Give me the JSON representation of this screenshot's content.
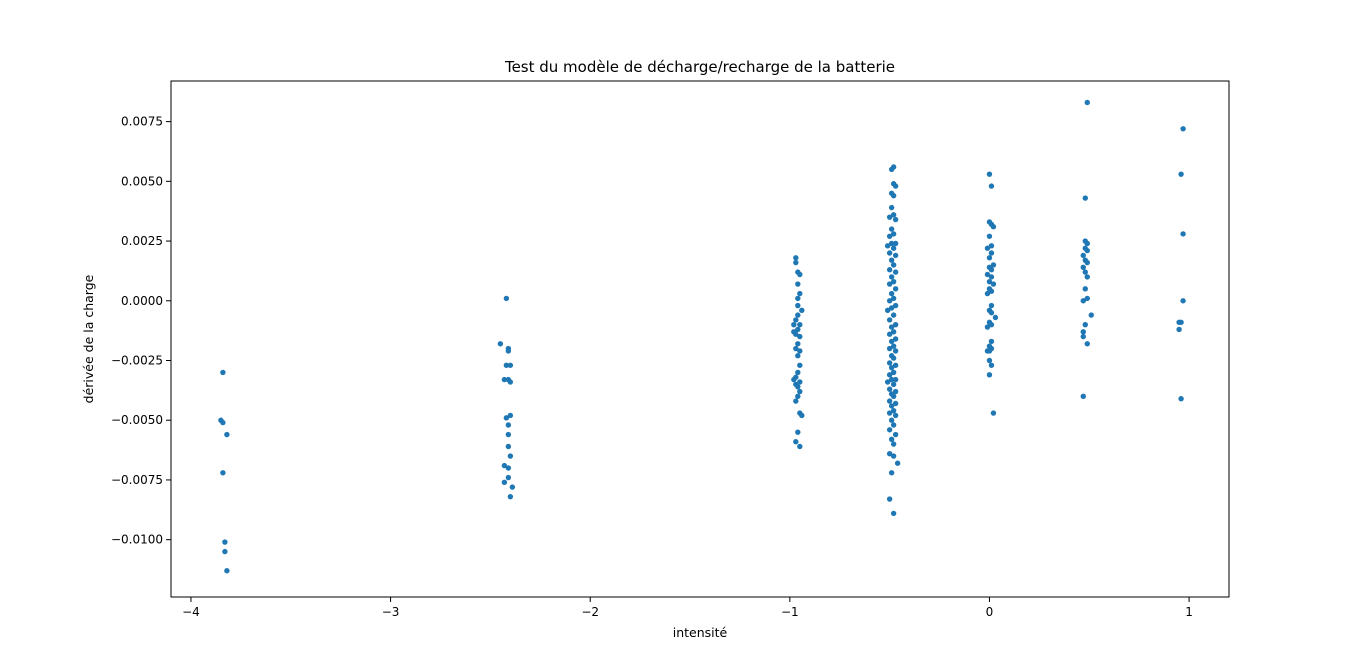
{
  "chart_data": {
    "type": "scatter",
    "title": "Test du modèle de décharge/recharge de la batterie",
    "xlabel": "intensité",
    "ylabel": "dérivée de la charge",
    "xlim": [
      -4.1,
      1.2
    ],
    "ylim": [
      -0.0124,
      0.0092
    ],
    "x_ticks": [
      {
        "value": -4,
        "label": "−4"
      },
      {
        "value": -3,
        "label": "−3"
      },
      {
        "value": -2,
        "label": "−2"
      },
      {
        "value": -1,
        "label": "−1"
      },
      {
        "value": 0,
        "label": "0"
      },
      {
        "value": 1,
        "label": "1"
      }
    ],
    "y_ticks": [
      {
        "value": -0.01,
        "label": "−0.0100"
      },
      {
        "value": -0.0075,
        "label": "−0.0075"
      },
      {
        "value": -0.005,
        "label": "−0.0050"
      },
      {
        "value": -0.0025,
        "label": "−0.0025"
      },
      {
        "value": 0,
        "label": "0.0000"
      },
      {
        "value": 0.0025,
        "label": "0.0025"
      },
      {
        "value": 0.005,
        "label": "0.0050"
      },
      {
        "value": 0.0075,
        "label": "0.0075"
      }
    ],
    "grid": false,
    "marker_color": "#1f77b4",
    "series": [
      {
        "points": [
          [
            -3.84,
            -0.003
          ],
          [
            -3.85,
            -0.005
          ],
          [
            -3.84,
            -0.0051
          ],
          [
            -3.82,
            -0.0056
          ],
          [
            -3.84,
            -0.0072
          ],
          [
            -3.83,
            -0.0101
          ],
          [
            -3.83,
            -0.0105
          ],
          [
            -3.82,
            -0.0113
          ],
          [
            -2.42,
            0.0001
          ],
          [
            -2.45,
            -0.0018
          ],
          [
            -2.41,
            -0.002
          ],
          [
            -2.41,
            -0.0021
          ],
          [
            -2.4,
            -0.0027
          ],
          [
            -2.42,
            -0.0027
          ],
          [
            -2.41,
            -0.0033
          ],
          [
            -2.43,
            -0.0033
          ],
          [
            -2.4,
            -0.0034
          ],
          [
            -2.4,
            -0.0048
          ],
          [
            -2.42,
            -0.0049
          ],
          [
            -2.41,
            -0.0052
          ],
          [
            -2.41,
            -0.0056
          ],
          [
            -2.41,
            -0.0061
          ],
          [
            -2.4,
            -0.0065
          ],
          [
            -2.43,
            -0.0069
          ],
          [
            -2.41,
            -0.007
          ],
          [
            -2.41,
            -0.0074
          ],
          [
            -2.43,
            -0.0076
          ],
          [
            -2.39,
            -0.0078
          ],
          [
            -2.4,
            -0.0082
          ],
          [
            -0.97,
            0.0018
          ],
          [
            -0.97,
            0.0016
          ],
          [
            -0.96,
            0.0012
          ],
          [
            -0.95,
            0.0011
          ],
          [
            -0.96,
            0.0007
          ],
          [
            -0.95,
            0.0003
          ],
          [
            -0.96,
            0.0001
          ],
          [
            -0.96,
            -0.0002
          ],
          [
            -0.94,
            -0.0004
          ],
          [
            -0.96,
            -0.0006
          ],
          [
            -0.97,
            -0.0008
          ],
          [
            -0.95,
            -0.001
          ],
          [
            -0.98,
            -0.001
          ],
          [
            -0.96,
            -0.0012
          ],
          [
            -0.97,
            -0.0014
          ],
          [
            -0.95,
            -0.0015
          ],
          [
            -0.98,
            -0.0013
          ],
          [
            -0.96,
            -0.0018
          ],
          [
            -0.97,
            -0.002
          ],
          [
            -0.95,
            -0.0021
          ],
          [
            -0.96,
            -0.0023
          ],
          [
            -0.95,
            -0.0027
          ],
          [
            -0.96,
            -0.003
          ],
          [
            -0.97,
            -0.0032
          ],
          [
            -0.98,
            -0.0033
          ],
          [
            -0.95,
            -0.0034
          ],
          [
            -0.96,
            -0.0036
          ],
          [
            -0.97,
            -0.0035
          ],
          [
            -0.95,
            -0.0038
          ],
          [
            -0.96,
            -0.004
          ],
          [
            -0.97,
            -0.0042
          ],
          [
            -0.95,
            -0.0047
          ],
          [
            -0.94,
            -0.0048
          ],
          [
            -0.96,
            -0.0055
          ],
          [
            -0.97,
            -0.0059
          ],
          [
            -0.95,
            -0.0061
          ],
          [
            -0.48,
            0.0056
          ],
          [
            -0.49,
            0.0055
          ],
          [
            -0.48,
            0.0049
          ],
          [
            -0.47,
            0.0048
          ],
          [
            -0.49,
            0.0045
          ],
          [
            -0.48,
            0.0044
          ],
          [
            -0.49,
            0.0039
          ],
          [
            -0.48,
            0.0036
          ],
          [
            -0.5,
            0.0035
          ],
          [
            -0.47,
            0.0034
          ],
          [
            -0.49,
            0.003
          ],
          [
            -0.48,
            0.0028
          ],
          [
            -0.5,
            0.0027
          ],
          [
            -0.47,
            0.0024
          ],
          [
            -0.49,
            0.0024
          ],
          [
            -0.51,
            0.0023
          ],
          [
            -0.48,
            0.0022
          ],
          [
            -0.5,
            0.002
          ],
          [
            -0.47,
            0.0019
          ],
          [
            -0.49,
            0.0017
          ],
          [
            -0.48,
            0.0015
          ],
          [
            -0.5,
            0.0013
          ],
          [
            -0.47,
            0.0012
          ],
          [
            -0.49,
            0.001
          ],
          [
            -0.48,
            0.0008
          ],
          [
            -0.5,
            0.0007
          ],
          [
            -0.47,
            0.0005
          ],
          [
            -0.49,
            0.0003
          ],
          [
            -0.48,
            0.0001
          ],
          [
            -0.5,
            0.0
          ],
          [
            -0.47,
            -0.0002
          ],
          [
            -0.49,
            -0.0003
          ],
          [
            -0.51,
            -0.0004
          ],
          [
            -0.48,
            -0.0006
          ],
          [
            -0.5,
            -0.0008
          ],
          [
            -0.47,
            -0.001
          ],
          [
            -0.49,
            -0.0011
          ],
          [
            -0.48,
            -0.0013
          ],
          [
            -0.5,
            -0.0014
          ],
          [
            -0.47,
            -0.0016
          ],
          [
            -0.49,
            -0.0017
          ],
          [
            -0.48,
            -0.0019
          ],
          [
            -0.5,
            -0.002
          ],
          [
            -0.47,
            -0.0021
          ],
          [
            -0.49,
            -0.0023
          ],
          [
            -0.48,
            -0.0024
          ],
          [
            -0.5,
            -0.0026
          ],
          [
            -0.47,
            -0.0027
          ],
          [
            -0.49,
            -0.0028
          ],
          [
            -0.48,
            -0.003
          ],
          [
            -0.5,
            -0.0031
          ],
          [
            -0.47,
            -0.0033
          ],
          [
            -0.49,
            -0.0033
          ],
          [
            -0.51,
            -0.0034
          ],
          [
            -0.48,
            -0.0035
          ],
          [
            -0.5,
            -0.0037
          ],
          [
            -0.47,
            -0.0038
          ],
          [
            -0.49,
            -0.0039
          ],
          [
            -0.48,
            -0.004
          ],
          [
            -0.5,
            -0.0042
          ],
          [
            -0.47,
            -0.0043
          ],
          [
            -0.49,
            -0.0044
          ],
          [
            -0.48,
            -0.0046
          ],
          [
            -0.5,
            -0.0047
          ],
          [
            -0.47,
            -0.0048
          ],
          [
            -0.49,
            -0.005
          ],
          [
            -0.48,
            -0.0052
          ],
          [
            -0.5,
            -0.0054
          ],
          [
            -0.47,
            -0.0056
          ],
          [
            -0.49,
            -0.0058
          ],
          [
            -0.48,
            -0.006
          ],
          [
            -0.5,
            -0.0064
          ],
          [
            -0.48,
            -0.0065
          ],
          [
            -0.46,
            -0.0068
          ],
          [
            -0.49,
            -0.0072
          ],
          [
            -0.5,
            -0.0083
          ],
          [
            -0.48,
            -0.0089
          ],
          [
            0.0,
            0.0053
          ],
          [
            0.01,
            0.0048
          ],
          [
            0.0,
            0.0033
          ],
          [
            0.01,
            0.0032
          ],
          [
            0.02,
            0.0031
          ],
          [
            0.0,
            0.0027
          ],
          [
            0.01,
            0.0023
          ],
          [
            -0.01,
            0.0022
          ],
          [
            0.01,
            0.002
          ],
          [
            0.0,
            0.0018
          ],
          [
            0.02,
            0.0015
          ],
          [
            0.0,
            0.0014
          ],
          [
            0.01,
            0.0013
          ],
          [
            -0.01,
            0.0011
          ],
          [
            0.01,
            0.001
          ],
          [
            0.0,
            0.0008
          ],
          [
            0.02,
            0.0007
          ],
          [
            0.0,
            0.0005
          ],
          [
            0.01,
            0.0004
          ],
          [
            -0.01,
            0.0003
          ],
          [
            0.01,
            -0.0002
          ],
          [
            0.0,
            -0.0004
          ],
          [
            0.01,
            -0.0005
          ],
          [
            0.03,
            -0.0007
          ],
          [
            0.0,
            -0.0009
          ],
          [
            0.01,
            -0.001
          ],
          [
            -0.01,
            -0.0011
          ],
          [
            0.01,
            -0.0017
          ],
          [
            0.0,
            -0.0019
          ],
          [
            0.01,
            -0.002
          ],
          [
            -0.01,
            -0.0021
          ],
          [
            0.0,
            -0.0021
          ],
          [
            0.0,
            -0.0025
          ],
          [
            0.01,
            -0.0027
          ],
          [
            0.0,
            -0.0031
          ],
          [
            0.02,
            -0.0047
          ],
          [
            0.49,
            0.0083
          ],
          [
            0.48,
            0.0043
          ],
          [
            0.48,
            0.0025
          ],
          [
            0.49,
            0.0024
          ],
          [
            0.48,
            0.0022
          ],
          [
            0.49,
            0.0021
          ],
          [
            0.47,
            0.0019
          ],
          [
            0.48,
            0.0017
          ],
          [
            0.49,
            0.0016
          ],
          [
            0.47,
            0.0014
          ],
          [
            0.48,
            0.0012
          ],
          [
            0.49,
            0.001
          ],
          [
            0.48,
            0.0005
          ],
          [
            0.49,
            0.0001
          ],
          [
            0.47,
            0.0
          ],
          [
            0.51,
            -0.0006
          ],
          [
            0.48,
            -0.001
          ],
          [
            0.47,
            -0.0013
          ],
          [
            0.47,
            -0.0015
          ],
          [
            0.49,
            -0.0018
          ],
          [
            0.47,
            -0.004
          ],
          [
            0.97,
            0.0072
          ],
          [
            0.96,
            0.0053
          ],
          [
            0.97,
            0.0028
          ],
          [
            0.97,
            0.0
          ],
          [
            0.95,
            -0.0009
          ],
          [
            0.96,
            -0.0009
          ],
          [
            0.95,
            -0.0012
          ],
          [
            0.96,
            -0.0041
          ]
        ]
      }
    ]
  }
}
